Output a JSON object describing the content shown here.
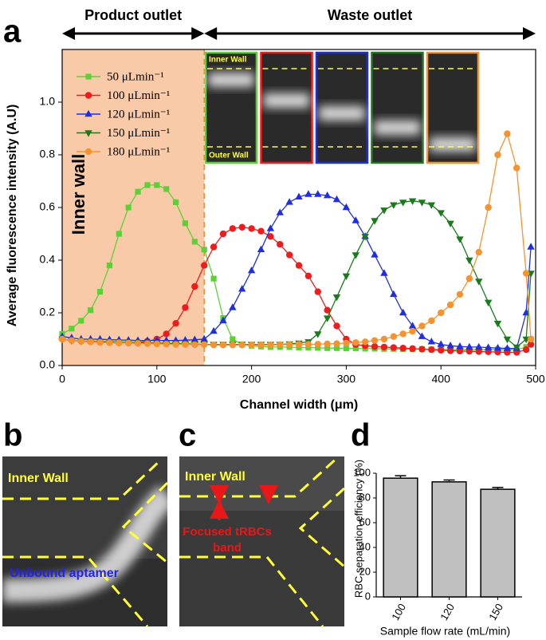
{
  "panel_labels": [
    "a",
    "b",
    "c",
    "d"
  ],
  "chart_data": [
    {
      "type": "line",
      "top_labels": [
        "Product outlet",
        "Waste outlet"
      ],
      "region_label": "Inner wall",
      "shaded_xrange": [
        0,
        150
      ],
      "shaded_color": "#f8caa8",
      "inset": {
        "top_label": "Inner Wall",
        "bottom_label": "Outer Wall"
      },
      "xlabel": "Channel width (μm)",
      "ylabel": "Average fluorescence intensity (A.U)",
      "xlim": [
        0,
        500
      ],
      "xticks": [
        0,
        100,
        200,
        300,
        400,
        500
      ],
      "ylim": [
        0,
        1.2
      ],
      "yticks": [
        {
          "value": 0,
          "label": "0.0"
        },
        0.2,
        0.4,
        0.6,
        0.8,
        {
          "value": 1,
          "label": "1.0"
        }
      ],
      "x": [
        0,
        10,
        20,
        30,
        40,
        50,
        60,
        70,
        80,
        90,
        100,
        110,
        120,
        130,
        140,
        150,
        160,
        170,
        180,
        190,
        200,
        210,
        220,
        230,
        240,
        250,
        260,
        270,
        280,
        290,
        300,
        310,
        320,
        330,
        340,
        350,
        360,
        370,
        380,
        390,
        400,
        410,
        420,
        430,
        440,
        450,
        460,
        470,
        480,
        490,
        495
      ],
      "series": [
        {
          "name": "50 μLmin⁻¹",
          "color": "#5cd136",
          "marker": "square",
          "values": [
            0.12,
            0.14,
            0.17,
            0.21,
            0.28,
            0.38,
            0.5,
            0.6,
            0.66,
            0.685,
            0.685,
            0.67,
            0.62,
            0.54,
            0.47,
            0.44,
            0.33,
            0.18,
            0.1,
            0.08,
            0.075,
            0.072,
            0.07,
            0.07,
            0.07,
            0.068,
            0.068,
            0.067,
            0.066,
            0.066,
            0.065,
            0.065,
            0.064,
            0.064,
            0.063,
            0.063,
            0.062,
            0.062,
            0.062,
            0.061,
            0.061,
            0.06,
            0.06,
            0.06,
            0.06,
            0.06,
            0.06,
            0.06,
            0.06,
            0.07,
            0.1
          ]
        },
        {
          "name": "100 μLmin⁻¹",
          "color": "#ee1c1c",
          "marker": "circle",
          "values": [
            0.1,
            0.095,
            0.092,
            0.09,
            0.088,
            0.087,
            0.086,
            0.086,
            0.088,
            0.092,
            0.1,
            0.12,
            0.16,
            0.22,
            0.3,
            0.38,
            0.45,
            0.5,
            0.52,
            0.525,
            0.52,
            0.51,
            0.49,
            0.46,
            0.42,
            0.38,
            0.34,
            0.28,
            0.21,
            0.15,
            0.1,
            0.08,
            0.075,
            0.072,
            0.07,
            0.068,
            0.066,
            0.064,
            0.062,
            0.06,
            0.058,
            0.056,
            0.055,
            0.054,
            0.053,
            0.052,
            0.051,
            0.05,
            0.05,
            0.06,
            0.08
          ]
        },
        {
          "name": "120 μLmin⁻¹",
          "color": "#1f2fe0",
          "marker": "triangle-up",
          "values": [
            0.11,
            0.105,
            0.1,
            0.1,
            0.1,
            0.098,
            0.097,
            0.096,
            0.095,
            0.095,
            0.095,
            0.095,
            0.095,
            0.096,
            0.098,
            0.1,
            0.13,
            0.17,
            0.22,
            0.29,
            0.36,
            0.44,
            0.52,
            0.58,
            0.62,
            0.64,
            0.65,
            0.65,
            0.645,
            0.63,
            0.6,
            0.55,
            0.49,
            0.42,
            0.35,
            0.27,
            0.2,
            0.15,
            0.11,
            0.09,
            0.08,
            0.075,
            0.072,
            0.07,
            0.07,
            0.068,
            0.066,
            0.065,
            0.065,
            0.2,
            0.45
          ]
        },
        {
          "name": "150 μLmin⁻¹",
          "color": "#1c7a1c",
          "marker": "triangle-down",
          "values": [
            0.1,
            0.095,
            0.093,
            0.092,
            0.091,
            0.09,
            0.089,
            0.088,
            0.087,
            0.086,
            0.085,
            0.084,
            0.083,
            0.082,
            0.081,
            0.08,
            0.08,
            0.08,
            0.08,
            0.08,
            0.08,
            0.08,
            0.08,
            0.08,
            0.082,
            0.085,
            0.09,
            0.12,
            0.18,
            0.26,
            0.34,
            0.42,
            0.49,
            0.55,
            0.59,
            0.61,
            0.62,
            0.625,
            0.62,
            0.61,
            0.58,
            0.54,
            0.48,
            0.4,
            0.32,
            0.24,
            0.16,
            0.1,
            0.07,
            0.1,
            0.35
          ]
        },
        {
          "name": "180 μLmin⁻¹",
          "color": "#f59331",
          "marker": "circle",
          "values": [
            0.1,
            0.095,
            0.092,
            0.09,
            0.088,
            0.087,
            0.086,
            0.085,
            0.084,
            0.083,
            0.082,
            0.081,
            0.08,
            0.08,
            0.079,
            0.079,
            0.078,
            0.078,
            0.078,
            0.078,
            0.078,
            0.078,
            0.078,
            0.079,
            0.079,
            0.08,
            0.08,
            0.081,
            0.082,
            0.083,
            0.085,
            0.087,
            0.09,
            0.095,
            0.1,
            0.11,
            0.12,
            0.13,
            0.15,
            0.17,
            0.2,
            0.23,
            0.27,
            0.33,
            0.43,
            0.6,
            0.8,
            0.88,
            0.75,
            0.35,
            0.1
          ]
        }
      ]
    },
    {
      "type": "bar",
      "xlabel": "Sample flow rate (mL/min)",
      "ylabel": "RBC separation efficiency (%)",
      "categories": [
        "100",
        "120",
        "150"
      ],
      "values": [
        96,
        93,
        87
      ],
      "errors": [
        2,
        1.5,
        1.5
      ],
      "color": "#c0c0c0",
      "ylim": [
        0,
        100
      ],
      "yticks": [
        0,
        20,
        40,
        60,
        80,
        100
      ]
    }
  ],
  "panel_b": {
    "wall_label": "Inner Wall",
    "annotation": "Unbound aptamer"
  },
  "panel_c": {
    "wall_label": "Inner Wall",
    "annotation": [
      "Focused tRBCs",
      "band"
    ]
  }
}
